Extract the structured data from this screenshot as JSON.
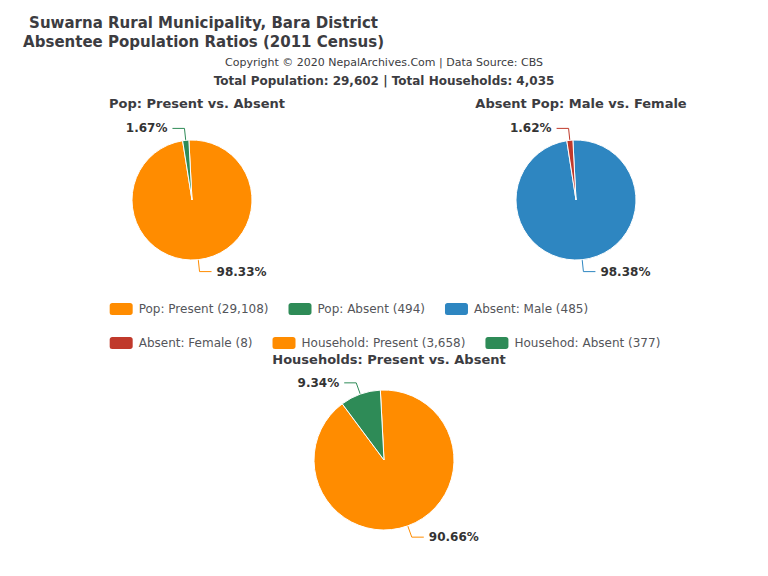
{
  "title": [
    "Suwarna Rural Municipality, Bara District",
    "Absentee Population Ratios (2011 Census)"
  ],
  "annotations": [
    "Copyright © 2020 NepalArchives.Com | Data Source: CBS",
    "Total Population: 29,602 | Total Households: 4,035"
  ],
  "legend": "center",
  "chart_data": [
    {
      "type": "pie",
      "title": "Pop: Present vs. Absent",
      "categories": [
        "Pop: Present (29,108)",
        "Pop: Absent (494)"
      ],
      "values": [
        98.33,
        1.67
      ],
      "value_labels": [
        "98.33%",
        "1.67%"
      ],
      "colors": [
        "#FF8C00",
        "#2E8B57"
      ],
      "data_labels": true
    },
    {
      "type": "pie",
      "title": "Absent Pop: Male vs. Female",
      "categories": [
        "Absent: Male (485)",
        "Absent: Female (8)"
      ],
      "values": [
        98.38,
        1.62
      ],
      "value_labels": [
        "98.38%",
        "1.62%"
      ],
      "colors": [
        "#2E86C1",
        "#C0392B"
      ],
      "data_labels": true
    },
    {
      "type": "pie",
      "title": "Households: Present vs. Absent",
      "categories": [
        "Household: Present (3,658)",
        "Househod: Absent (377)"
      ],
      "values": [
        90.66,
        9.34
      ],
      "value_labels": [
        "90.66%",
        "9.34%"
      ],
      "colors": [
        "#FF8C00",
        "#2E8B57"
      ],
      "data_labels": true
    }
  ]
}
